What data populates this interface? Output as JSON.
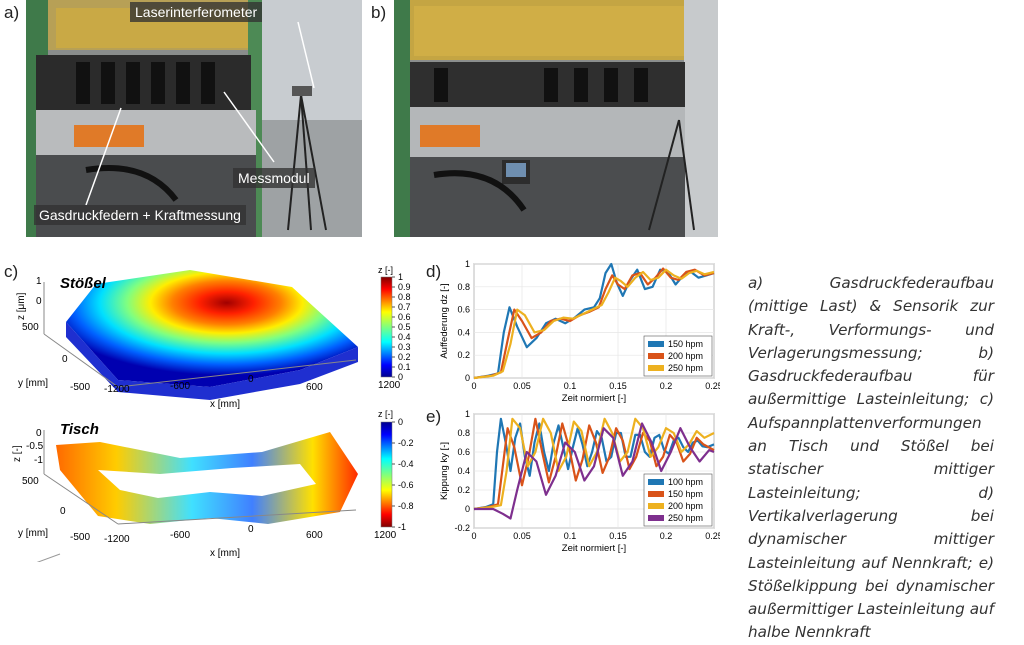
{
  "panels": {
    "a_label": "a)",
    "b_label": "b)",
    "c_label": "c)",
    "d_label": "d)",
    "e_label": "e)"
  },
  "photo_a": {
    "labels": [
      "Laserinterferometer",
      "Messmodul",
      "Gasdruckfedern + Kraftmessung"
    ]
  },
  "surface_top": {
    "title": "Stößel",
    "z_axis_label": "z [μm]",
    "z_ticks": [
      "1",
      "0"
    ],
    "y_axis_label": "y [mm]",
    "y_ticks": [
      "500",
      "0",
      "-500"
    ],
    "x_axis_label": "x [mm]",
    "x_ticks": [
      "-1200",
      "-600",
      "0",
      "600",
      "1200"
    ],
    "colorbar_title": "z [-]",
    "colorbar_ticks": [
      "1",
      "0.9",
      "0.8",
      "0.7",
      "0.6",
      "0.5",
      "0.4",
      "0.3",
      "0.2",
      "0.1",
      "0"
    ]
  },
  "surface_bottom": {
    "title": "Tisch",
    "z_axis_label": "z [-]",
    "z_ticks": [
      "0",
      "-0.5",
      "-1"
    ],
    "y_axis_label": "y [mm]",
    "y_ticks": [
      "500",
      "0",
      "-500"
    ],
    "x_axis_label": "x [mm]",
    "x_ticks": [
      "-1200",
      "-600",
      "0",
      "600",
      "1200"
    ],
    "colorbar_title": "z [-]",
    "colorbar_ticks": [
      "0",
      "-0.2",
      "-0.4",
      "-0.6",
      "-0.8",
      "-1"
    ]
  },
  "chart_data": [
    {
      "type": "line",
      "panel": "d",
      "xlabel": "Zeit normiert [-]",
      "ylabel": "Auffederung dz [-]",
      "xlim": [
        0,
        0.25
      ],
      "ylim": [
        0,
        1
      ],
      "xticks": [
        "0",
        "0.05",
        "0.1",
        "0.15",
        "0.2",
        "0.25"
      ],
      "yticks": [
        "0",
        "0.2",
        "0.4",
        "0.6",
        "0.8",
        "1"
      ],
      "legend_position": "bottom-right",
      "series": [
        {
          "name": "150 hpm",
          "color": "#1f77b4",
          "x": [
            0,
            0.015,
            0.025,
            0.031,
            0.037,
            0.045,
            0.055,
            0.065,
            0.075,
            0.085,
            0.095,
            0.105,
            0.115,
            0.125,
            0.131,
            0.137,
            0.143,
            0.149,
            0.155,
            0.162,
            0.17,
            0.178,
            0.186,
            0.194,
            0.202,
            0.21,
            0.218,
            0.226,
            0.234,
            0.242,
            0.25
          ],
          "y": [
            0,
            0.02,
            0.04,
            0.4,
            0.62,
            0.45,
            0.27,
            0.35,
            0.48,
            0.52,
            0.48,
            0.53,
            0.6,
            0.62,
            0.7,
            0.92,
            1.0,
            0.83,
            0.72,
            0.85,
            0.95,
            0.78,
            0.8,
            0.95,
            0.93,
            0.82,
            0.9,
            0.93,
            0.88,
            0.9,
            0.92
          ]
        },
        {
          "name": "200 hpm",
          "color": "#d95319",
          "x": [
            0,
            0.018,
            0.028,
            0.035,
            0.042,
            0.05,
            0.06,
            0.07,
            0.08,
            0.09,
            0.1,
            0.11,
            0.12,
            0.13,
            0.137,
            0.144,
            0.15,
            0.157,
            0.165,
            0.173,
            0.181,
            0.189,
            0.197,
            0.205,
            0.213,
            0.221,
            0.23,
            0.24,
            0.25
          ],
          "y": [
            0,
            0.02,
            0.05,
            0.33,
            0.6,
            0.5,
            0.35,
            0.4,
            0.5,
            0.52,
            0.5,
            0.55,
            0.58,
            0.62,
            0.78,
            0.9,
            0.82,
            0.78,
            0.9,
            0.92,
            0.82,
            0.88,
            0.96,
            0.88,
            0.86,
            0.93,
            0.95,
            0.9,
            0.92
          ]
        },
        {
          "name": "250 hpm",
          "color": "#edb120",
          "x": [
            0,
            0.02,
            0.03,
            0.038,
            0.045,
            0.053,
            0.063,
            0.073,
            0.083,
            0.093,
            0.103,
            0.113,
            0.123,
            0.133,
            0.14,
            0.147,
            0.153,
            0.16,
            0.168,
            0.176,
            0.184,
            0.192,
            0.2,
            0.208,
            0.216,
            0.224,
            0.232,
            0.24,
            0.25
          ],
          "y": [
            0,
            0.02,
            0.06,
            0.3,
            0.6,
            0.55,
            0.4,
            0.42,
            0.5,
            0.53,
            0.52,
            0.56,
            0.6,
            0.64,
            0.75,
            0.88,
            0.85,
            0.8,
            0.88,
            0.93,
            0.86,
            0.88,
            0.95,
            0.9,
            0.87,
            0.92,
            0.94,
            0.91,
            0.93
          ]
        }
      ]
    },
    {
      "type": "line",
      "panel": "e",
      "xlabel": "Zeit normiert [-]",
      "ylabel": "Kippung ky [-]",
      "xlim": [
        0,
        0.25
      ],
      "ylim": [
        -0.2,
        1
      ],
      "xticks": [
        "0",
        "0.05",
        "0.1",
        "0.15",
        "0.2",
        "0.25"
      ],
      "yticks": [
        "-0.2",
        "0",
        "0.2",
        "0.4",
        "0.6",
        "0.8",
        "1"
      ],
      "legend_position": "bottom-right",
      "series": [
        {
          "name": "100 hpm",
          "color": "#1f77b4",
          "x": [
            0,
            0.012,
            0.02,
            0.024,
            0.028,
            0.033,
            0.038,
            0.043,
            0.048,
            0.053,
            0.058,
            0.063,
            0.068,
            0.073,
            0.078,
            0.083,
            0.088,
            0.093,
            0.098,
            0.103,
            0.108,
            0.113,
            0.118,
            0.123,
            0.128,
            0.133,
            0.138,
            0.143,
            0.148,
            0.153,
            0.158,
            0.163,
            0.168,
            0.173,
            0.178,
            0.183,
            0.188,
            0.193,
            0.198,
            0.203,
            0.208,
            0.213,
            0.218,
            0.223,
            0.228,
            0.233,
            0.238,
            0.243,
            0.25
          ],
          "y": [
            0.0,
            0.02,
            0.05,
            0.6,
            0.95,
            0.7,
            0.4,
            0.75,
            0.9,
            0.55,
            0.35,
            0.7,
            0.9,
            0.6,
            0.4,
            0.7,
            0.88,
            0.65,
            0.42,
            0.65,
            0.85,
            0.68,
            0.45,
            0.6,
            0.82,
            0.75,
            0.5,
            0.55,
            0.8,
            0.8,
            0.55,
            0.55,
            0.78,
            0.78,
            0.6,
            0.55,
            0.75,
            0.78,
            0.62,
            0.58,
            0.72,
            0.75,
            0.65,
            0.6,
            0.7,
            0.72,
            0.66,
            0.65,
            0.68
          ]
        },
        {
          "name": "150 hpm",
          "color": "#d95319",
          "x": [
            0,
            0.015,
            0.025,
            0.03,
            0.035,
            0.042,
            0.05,
            0.057,
            0.064,
            0.071,
            0.078,
            0.085,
            0.092,
            0.099,
            0.106,
            0.113,
            0.12,
            0.127,
            0.134,
            0.141,
            0.148,
            0.155,
            0.162,
            0.169,
            0.176,
            0.183,
            0.19,
            0.197,
            0.204,
            0.211,
            0.218,
            0.225,
            0.232,
            0.239,
            0.25
          ],
          "y": [
            0.0,
            0.02,
            0.05,
            0.45,
            0.85,
            0.65,
            0.25,
            0.55,
            0.95,
            0.6,
            0.28,
            0.55,
            0.9,
            0.65,
            0.3,
            0.52,
            0.88,
            0.7,
            0.38,
            0.55,
            0.85,
            0.72,
            0.42,
            0.55,
            0.8,
            0.72,
            0.45,
            0.55,
            0.78,
            0.7,
            0.5,
            0.58,
            0.75,
            0.68,
            0.62
          ]
        },
        {
          "name": "200 hpm",
          "color": "#edb120",
          "x": [
            0,
            0.018,
            0.028,
            0.034,
            0.04,
            0.048,
            0.056,
            0.064,
            0.072,
            0.08,
            0.088,
            0.096,
            0.104,
            0.112,
            0.12,
            0.128,
            0.136,
            0.144,
            0.152,
            0.16,
            0.168,
            0.176,
            0.184,
            0.192,
            0.2,
            0.208,
            0.216,
            0.224,
            0.232,
            0.24,
            0.25
          ],
          "y": [
            0.0,
            0.02,
            0.04,
            0.4,
            0.95,
            0.85,
            0.45,
            0.6,
            0.95,
            0.8,
            0.4,
            0.55,
            0.92,
            0.82,
            0.45,
            0.6,
            0.95,
            0.8,
            0.5,
            0.6,
            0.95,
            0.85,
            0.55,
            0.65,
            0.85,
            0.8,
            0.6,
            0.68,
            0.82,
            0.75,
            0.8
          ]
        },
        {
          "name": "250 hpm",
          "color": "#7e2f8e",
          "x": [
            0,
            0.02,
            0.03,
            0.038,
            0.045,
            0.055,
            0.065,
            0.075,
            0.085,
            0.095,
            0.105,
            0.115,
            0.125,
            0.135,
            0.145,
            0.155,
            0.165,
            0.175,
            0.185,
            0.195,
            0.205,
            0.215,
            0.225,
            0.235,
            0.245,
            0.25
          ],
          "y": [
            0.0,
            0.0,
            -0.05,
            -0.1,
            0.2,
            0.6,
            0.5,
            0.15,
            0.35,
            0.7,
            0.6,
            0.3,
            0.45,
            0.85,
            0.75,
            0.35,
            0.5,
            0.9,
            0.7,
            0.4,
            0.6,
            0.85,
            0.65,
            0.5,
            0.62,
            0.6
          ]
        }
      ]
    }
  ],
  "caption": "a) Gasdruckfederaufbau (mittige Last) & Sensorik zur Kraft-, Verformungs- und Verlagerungsmessung; b) Gasdruckfederaufbau für außermittige Lasteinleitung; c) Aufspannplattenverformungen an Tisch und Stößel bei statischer mittiger Lasteinleitung; d) Vertikalverlagerung bei dynamischer mittiger Lasteinleitung auf Nennkraft; e) Stößelkippung bei dynamischer außermittiger Lasteinleitung auf halbe Nennkraft"
}
